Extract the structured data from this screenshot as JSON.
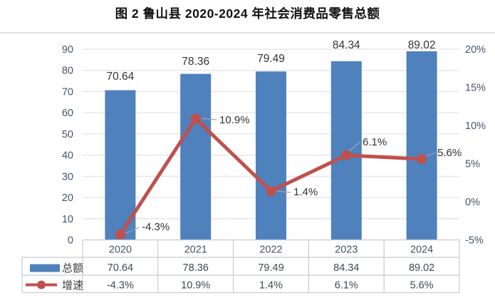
{
  "title": "图 2 鲁山县 2020-2024 年社会消费品零售总额",
  "colors": {
    "bar": "#4F81BD",
    "line": "#C0504D",
    "grid": "#E2E2E8",
    "border": "#C6CAD1",
    "frame": "#D6D6DA",
    "axis_text": "#44546A",
    "label_text": "#333333",
    "table_text": "#3E4856",
    "legend_text": "#3F3F3F",
    "leader": "#A6A6A6"
  },
  "chart_data": {
    "type": "combo",
    "categories": [
      "2020",
      "2021",
      "2022",
      "2023",
      "2024"
    ],
    "series": [
      {
        "name": "总额",
        "chart": "bar",
        "axis": "left",
        "values": [
          70.64,
          78.36,
          79.49,
          84.34,
          89.02
        ],
        "labels": [
          "70.64",
          "78.36",
          "79.49",
          "84.34",
          "89.02"
        ]
      },
      {
        "name": "增速",
        "chart": "line",
        "axis": "right",
        "values": [
          -4.3,
          10.9,
          1.4,
          6.1,
          5.6
        ],
        "labels": [
          "-4.3%",
          "10.9%",
          "1.4%",
          "6.1%",
          "5.6%"
        ]
      }
    ],
    "left_axis": {
      "min": 0,
      "max": 90,
      "step": 10,
      "ticks": [
        "0",
        "10",
        "20",
        "30",
        "40",
        "50",
        "60",
        "70",
        "80",
        "90"
      ]
    },
    "right_axis": {
      "min": -5,
      "max": 20,
      "step": 5,
      "ticks": [
        "-5%",
        "0%",
        "5%",
        "10%",
        "15%",
        "20%"
      ]
    },
    "grid": true,
    "legend_position": "data-table-left",
    "data_table_shown": true
  }
}
